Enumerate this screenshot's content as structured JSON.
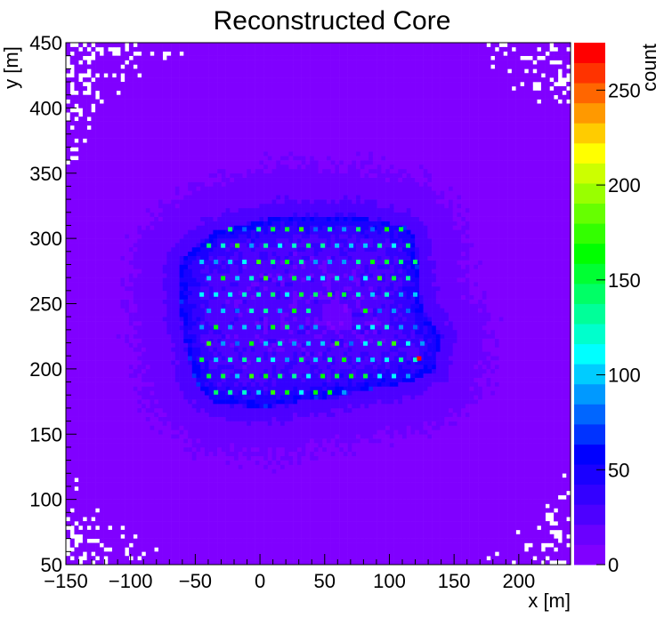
{
  "chart_data": {
    "type": "heatmap",
    "title": "Reconstructed Core",
    "xlabel": "x [m]",
    "ylabel": "y [m]",
    "zlabel": "count",
    "xlim": [
      -150,
      240
    ],
    "ylim": [
      50,
      450
    ],
    "zlim": [
      0,
      275
    ],
    "x_ticks": [
      -150,
      -100,
      -50,
      0,
      50,
      100,
      150,
      200
    ],
    "y_ticks": [
      50,
      100,
      150,
      200,
      250,
      300,
      350,
      400,
      450
    ],
    "z_ticks": [
      0,
      50,
      100,
      150,
      200,
      250
    ],
    "x_tick_labels": [
      "−150",
      "−100",
      "−50",
      "0",
      "50",
      "100",
      "150",
      "200"
    ],
    "y_tick_labels": [
      "50",
      "100",
      "150",
      "200",
      "250",
      "300",
      "350",
      "400",
      "450"
    ],
    "z_tick_labels": [
      "0",
      "50",
      "100",
      "150",
      "200",
      "250"
    ],
    "colormap": [
      "#8000ff",
      "#6a00ff",
      "#4d00ff",
      "#3300ff",
      "#1a00ff",
      "#0000ff",
      "#0033ff",
      "#0066ff",
      "#0099ff",
      "#00ccff",
      "#00ffff",
      "#00ffcc",
      "#00ff99",
      "#00ff66",
      "#00ff33",
      "#00ff00",
      "#33ff00",
      "#66ff00",
      "#99ff00",
      "#ccff00",
      "#ffff00",
      "#ffcc00",
      "#ff9900",
      "#ff6600",
      "#ff3300",
      "#ff0000"
    ],
    "background_count": 6,
    "core_region": [
      [
        -60,
        285
      ],
      [
        -35,
        305
      ],
      [
        20,
        318
      ],
      [
        70,
        318
      ],
      [
        110,
        310
      ],
      [
        120,
        300
      ],
      [
        125,
        245
      ],
      [
        140,
        225
      ],
      [
        135,
        200
      ],
      [
        115,
        190
      ],
      [
        60,
        180
      ],
      [
        0,
        170
      ],
      [
        -35,
        175
      ],
      [
        -50,
        190
      ],
      [
        -60,
        230
      ],
      [
        -62,
        265
      ]
    ],
    "core_edge_count": 60,
    "core_inner_count": 25,
    "hole_center": [
      60,
      240
    ],
    "hole_radius": 12,
    "detector_grid": {
      "x_start": -45,
      "x_end": 130,
      "dx": 11,
      "y_start": 182,
      "y_end": 318,
      "dy": 12.5,
      "row_offset": 5.5,
      "count_range": [
        75,
        175
      ]
    },
    "hotspot": {
      "x": 123,
      "y": 208,
      "count": 270
    }
  }
}
